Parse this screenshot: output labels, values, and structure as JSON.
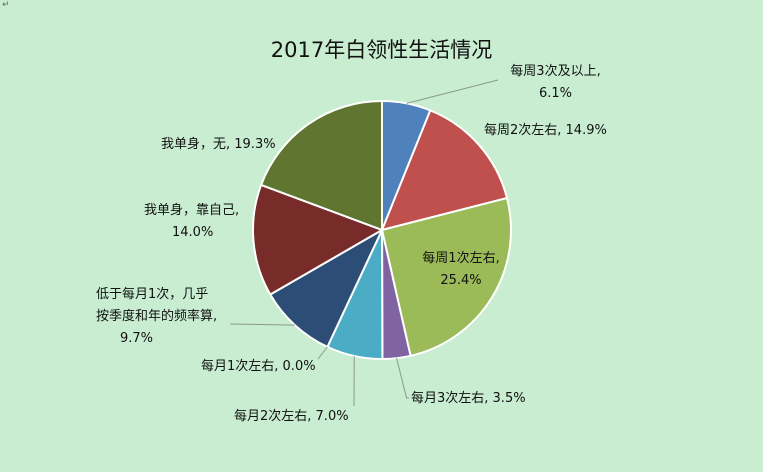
{
  "chart_data": {
    "type": "pie",
    "title": "2017年白领性生活情况",
    "series": [
      {
        "name": "每周3次及以上",
        "value": 6.1,
        "color": "#4f81bd",
        "label_lines": [
          "每周3次及以上,",
          "6.1%"
        ]
      },
      {
        "name": "每周2次左右",
        "value": 14.9,
        "color": "#c0504d",
        "label_lines": [
          "每周2次左右, 14.9%"
        ]
      },
      {
        "name": "每周1次左右",
        "value": 25.4,
        "color": "#9bbb59",
        "label_lines": [
          "每周1次左右,",
          "25.4%"
        ]
      },
      {
        "name": "每月3次左右",
        "value": 3.5,
        "color": "#8064a2",
        "label_lines": [
          "每月3次左右, 3.5%"
        ]
      },
      {
        "name": "每月2次左右",
        "value": 7.0,
        "color": "#4bacc6",
        "label_lines": [
          "每月2次左右, 7.0%"
        ]
      },
      {
        "name": "每月1次左右",
        "value": 0.0,
        "color": "#f79646",
        "label_lines": [
          "每月1次左右, 0.0%"
        ]
      },
      {
        "name": "低于每月1次，几乎按季度和年的频率算",
        "value": 9.7,
        "color": "#2c4d75",
        "label_lines": [
          "低于每月1次，几乎",
          "按季度和年的频率算,",
          "9.7%"
        ]
      },
      {
        "name": "我单身，靠自己",
        "value": 14.0,
        "color": "#772c2a",
        "label_lines": [
          "我单身，靠自己,",
          "14.0%"
        ]
      },
      {
        "name": "我单身，无",
        "value": 19.3,
        "color": "#5f7530",
        "label_lines": [
          "我单身，无, 19.3%"
        ]
      }
    ],
    "legend": "none"
  }
}
